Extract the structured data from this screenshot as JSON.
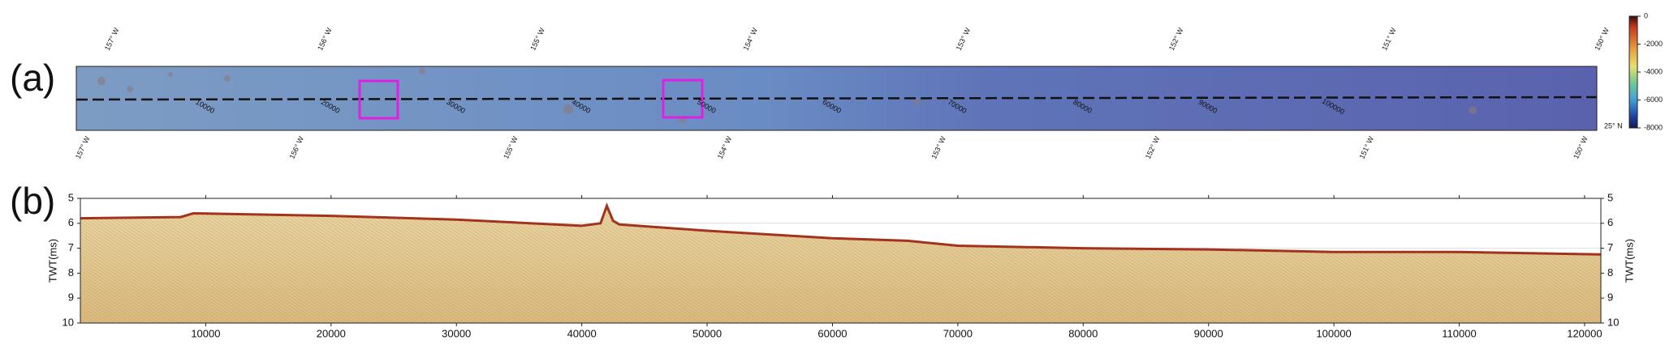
{
  "chart_data": [
    {
      "type": "map",
      "panel_label": "(a)",
      "top_labels": [
        "157° W",
        "156° W",
        "155° W",
        "154° W",
        "153° W",
        "152° W",
        "151° W",
        "150° W"
      ],
      "bottom_labels": [
        "157° W",
        "156° W",
        "155° W",
        "154° W",
        "153° W",
        "152° W",
        "151° W",
        "150° W"
      ],
      "lat_label": "25° N",
      "track_ticks": [
        10000,
        20000,
        30000,
        40000,
        50000,
        60000,
        70000,
        80000,
        90000,
        100000
      ],
      "xlim": [
        0,
        121300
      ],
      "colorbar": {
        "ylim": [
          -8000,
          0
        ],
        "yticks": [
          0,
          -2000,
          -4000,
          -6000,
          -8000
        ]
      }
    },
    {
      "type": "seismic",
      "panel_label": "(b)",
      "ylabel": "TWT(ms)",
      "xlim": [
        0,
        121300
      ],
      "xticks": [
        10000,
        20000,
        30000,
        40000,
        50000,
        60000,
        70000,
        80000,
        90000,
        100000,
        110000,
        120000
      ],
      "ylim": [
        10,
        5
      ],
      "yticks": [
        5,
        6,
        7,
        8,
        9,
        10
      ],
      "grid": true,
      "seafloor": {
        "x": [
          0,
          8000,
          9000,
          20000,
          30000,
          40000,
          41500,
          42000,
          42500,
          43000,
          50000,
          60000,
          66000,
          70000,
          80000,
          90000,
          100000,
          110000,
          121300
        ],
        "values": [
          5.8,
          5.75,
          5.6,
          5.7,
          5.85,
          6.1,
          6.0,
          5.3,
          5.9,
          6.05,
          6.3,
          6.6,
          6.7,
          6.9,
          7.0,
          7.05,
          7.15,
          7.15,
          7.25
        ]
      },
      "color": "#a3331c"
    }
  ]
}
